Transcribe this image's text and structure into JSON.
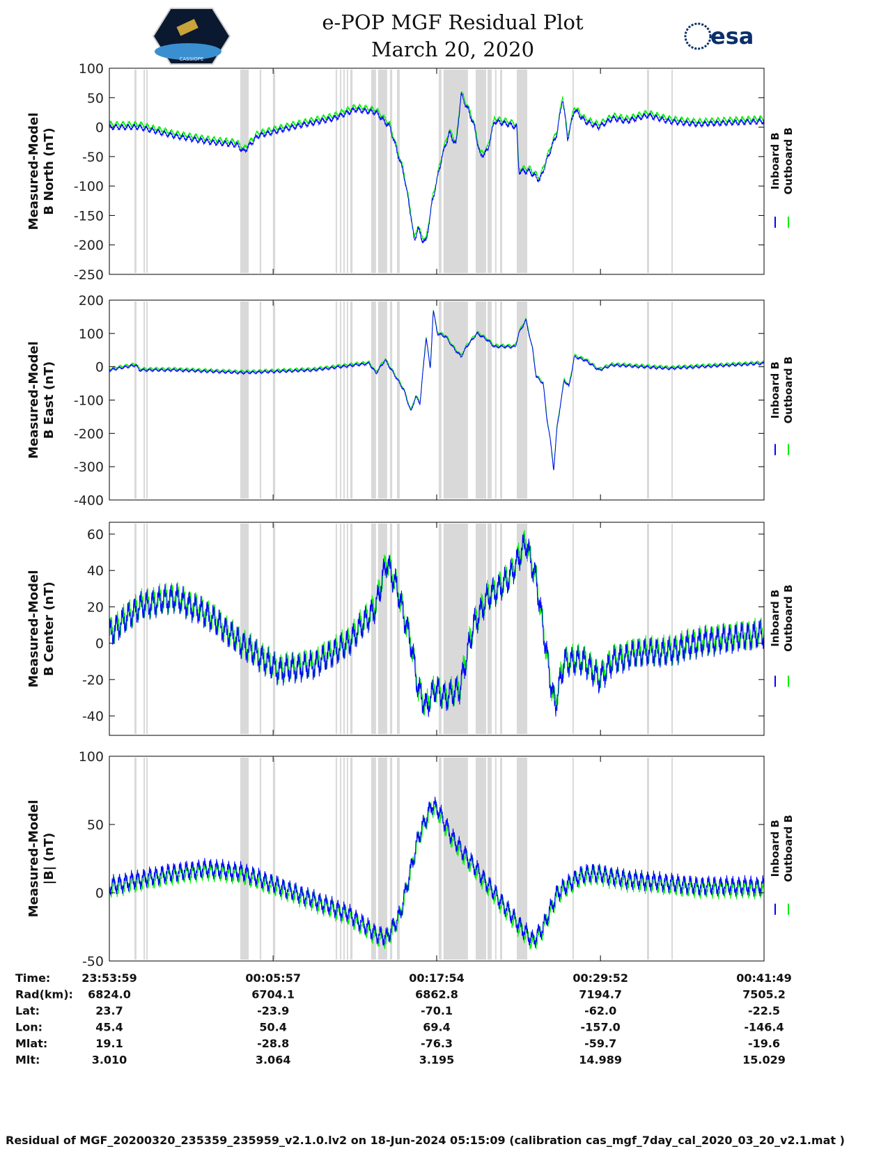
{
  "header": {
    "title_line1": "e-POP MGF Residual Plot",
    "title_line2": "March 20, 2020",
    "left_logo_text": "CASSIOPE",
    "right_logo_text": "esa"
  },
  "colors": {
    "inboard": "#0000ff",
    "outboard": "#00ee00",
    "shade": "#d9d9d9"
  },
  "chart_data": {
    "type": "line",
    "x_unit": "seconds since 23:53:59",
    "xlim": [
      0,
      2870
    ],
    "x_ticks": [
      0,
      718,
      1435,
      2153,
      2870
    ],
    "legend": {
      "placement": "right",
      "entries": [
        "Inboard B",
        "Outboard B"
      ]
    },
    "shaded_intervals": [
      [
        110,
        119
      ],
      [
        150,
        156
      ],
      [
        162,
        168
      ],
      [
        574,
        611
      ],
      [
        659,
        666
      ],
      [
        717,
        727
      ],
      [
        992,
        998
      ],
      [
        1011,
        1017
      ],
      [
        1026,
        1032
      ],
      [
        1041,
        1047
      ],
      [
        1056,
        1066
      ],
      [
        1148,
        1169
      ],
      [
        1178,
        1218
      ],
      [
        1230,
        1240
      ],
      [
        1261,
        1273
      ],
      [
        1444,
        1456
      ],
      [
        1465,
        1572
      ],
      [
        1606,
        1652
      ],
      [
        1658,
        1676
      ],
      [
        1691,
        1697
      ],
      [
        1713,
        1722
      ],
      [
        1786,
        1832
      ],
      [
        2030,
        2036
      ],
      [
        2357,
        2366
      ],
      [
        2464,
        2470
      ]
    ],
    "panels": [
      {
        "ylabel1": "Measured-Model",
        "ylabel2": "B North (nT)",
        "ylim": [
          -250,
          100
        ],
        "yticks": [
          100,
          50,
          0,
          -50,
          -100,
          -150,
          -200,
          -250
        ],
        "noise": 6,
        "outboard_offset": 5,
        "inboard": [
          [
            0,
            0
          ],
          [
            131,
            0
          ],
          [
            284,
            -15
          ],
          [
            437,
            -25
          ],
          [
            559,
            -30
          ],
          [
            589,
            -42
          ],
          [
            650,
            -15
          ],
          [
            803,
            0
          ],
          [
            986,
            15
          ],
          [
            1078,
            30
          ],
          [
            1169,
            25
          ],
          [
            1230,
            0
          ],
          [
            1291,
            -80
          ],
          [
            1322,
            -150
          ],
          [
            1337,
            -195
          ],
          [
            1353,
            -170
          ],
          [
            1368,
            -190
          ],
          [
            1389,
            -195
          ],
          [
            1414,
            -130
          ],
          [
            1459,
            -50
          ],
          [
            1490,
            -10
          ],
          [
            1520,
            -30
          ],
          [
            1542,
            55
          ],
          [
            1572,
            30
          ],
          [
            1597,
            5
          ],
          [
            1627,
            -50
          ],
          [
            1658,
            -40
          ],
          [
            1688,
            10
          ],
          [
            1749,
            5
          ],
          [
            1786,
            0
          ],
          [
            1795,
            -75
          ],
          [
            1841,
            -75
          ],
          [
            1887,
            -90
          ],
          [
            1933,
            -40
          ],
          [
            1963,
            -10
          ],
          [
            1987,
            50
          ],
          [
            2009,
            -20
          ],
          [
            2039,
            30
          ],
          [
            2085,
            10
          ],
          [
            2146,
            0
          ],
          [
            2207,
            15
          ],
          [
            2268,
            10
          ],
          [
            2360,
            20
          ],
          [
            2452,
            10
          ],
          [
            2574,
            5
          ],
          [
            2870,
            10
          ]
        ]
      },
      {
        "ylabel1": "Measured-Model",
        "ylabel2": "B East (nT)",
        "ylim": [
          -400,
          200
        ],
        "yticks": [
          200,
          100,
          0,
          -100,
          -200,
          -300,
          -400
        ],
        "noise": 5,
        "outboard_offset": 4,
        "inboard": [
          [
            0,
            -10
          ],
          [
            116,
            5
          ],
          [
            131,
            -10
          ],
          [
            284,
            -10
          ],
          [
            589,
            -18
          ],
          [
            895,
            -10
          ],
          [
            1139,
            10
          ],
          [
            1169,
            -20
          ],
          [
            1209,
            20
          ],
          [
            1246,
            -20
          ],
          [
            1291,
            -70
          ],
          [
            1322,
            -135
          ],
          [
            1343,
            -90
          ],
          [
            1362,
            -110
          ],
          [
            1389,
            90
          ],
          [
            1407,
            -10
          ],
          [
            1420,
            170
          ],
          [
            1438,
            100
          ],
          [
            1475,
            90
          ],
          [
            1505,
            60
          ],
          [
            1542,
            30
          ],
          [
            1566,
            60
          ],
          [
            1612,
            100
          ],
          [
            1658,
            80
          ],
          [
            1688,
            60
          ],
          [
            1780,
            60
          ],
          [
            1795,
            100
          ],
          [
            1826,
            140
          ],
          [
            1856,
            50
          ],
          [
            1871,
            -30
          ],
          [
            1902,
            -50
          ],
          [
            1917,
            -150
          ],
          [
            1933,
            -220
          ],
          [
            1948,
            -310
          ],
          [
            1963,
            -180
          ],
          [
            1994,
            -40
          ],
          [
            2015,
            -60
          ],
          [
            2039,
            30
          ],
          [
            2085,
            20
          ],
          [
            2146,
            -10
          ],
          [
            2207,
            5
          ],
          [
            2329,
            0
          ],
          [
            2452,
            -5
          ],
          [
            2870,
            10
          ]
        ]
      },
      {
        "ylabel1": "Measured-Model",
        "ylabel2": "B Center (nT)",
        "ylim": [
          -50.7,
          66.5
        ],
        "yticks": [
          60,
          40,
          20,
          0,
          -20,
          -40
        ],
        "noise": 9,
        "outboard_offset": 1,
        "inboard": [
          [
            0,
            5
          ],
          [
            131,
            20
          ],
          [
            284,
            25
          ],
          [
            437,
            15
          ],
          [
            574,
            0
          ],
          [
            742,
            -15
          ],
          [
            895,
            -12
          ],
          [
            1047,
            0
          ],
          [
            1169,
            20
          ],
          [
            1215,
            45
          ],
          [
            1261,
            30
          ],
          [
            1322,
            0
          ],
          [
            1353,
            -25
          ],
          [
            1389,
            -35
          ],
          [
            1429,
            -25
          ],
          [
            1475,
            -30
          ],
          [
            1536,
            -25
          ],
          [
            1597,
            10
          ],
          [
            1658,
            25
          ],
          [
            1749,
            35
          ],
          [
            1826,
            55
          ],
          [
            1871,
            35
          ],
          [
            1933,
            -20
          ],
          [
            1954,
            -35
          ],
          [
            1994,
            -10
          ],
          [
            2085,
            -10
          ],
          [
            2146,
            -20
          ],
          [
            2207,
            -10
          ],
          [
            2329,
            -5
          ],
          [
            2452,
            -5
          ],
          [
            2574,
            0
          ],
          [
            2870,
            5
          ]
        ]
      },
      {
        "ylabel1": "Measured-Model",
        "ylabel2": "|B| (nT)",
        "ylim": [
          -50,
          100
        ],
        "yticks": [
          100,
          50,
          0,
          -50
        ],
        "noise": 8,
        "outboard_offset": -2,
        "inboard": [
          [
            0,
            5
          ],
          [
            131,
            10
          ],
          [
            284,
            15
          ],
          [
            437,
            18
          ],
          [
            589,
            15
          ],
          [
            742,
            5
          ],
          [
            895,
            -5
          ],
          [
            1047,
            -15
          ],
          [
            1169,
            -30
          ],
          [
            1215,
            -33
          ],
          [
            1276,
            -15
          ],
          [
            1353,
            40
          ],
          [
            1414,
            65
          ],
          [
            1444,
            60
          ],
          [
            1505,
            40
          ],
          [
            1597,
            20
          ],
          [
            1688,
            0
          ],
          [
            1780,
            -20
          ],
          [
            1856,
            -35
          ],
          [
            1902,
            -25
          ],
          [
            1963,
            0
          ],
          [
            2055,
            12
          ],
          [
            2116,
            15
          ],
          [
            2268,
            10
          ],
          [
            2421,
            8
          ],
          [
            2574,
            5
          ],
          [
            2870,
            5
          ]
        ]
      }
    ]
  },
  "table": {
    "rows": [
      {
        "label": "Time:",
        "values": [
          "23:53:59",
          "00:05:57",
          "00:17:54",
          "00:29:52",
          "00:41:49"
        ]
      },
      {
        "label": "Rad(km):",
        "values": [
          "6824.0",
          "6704.1",
          "6862.8",
          "7194.7",
          "7505.2"
        ]
      },
      {
        "label": "Lat:",
        "values": [
          "23.7",
          "-23.9",
          "-70.1",
          "-62.0",
          "-22.5"
        ]
      },
      {
        "label": "Lon:",
        "values": [
          "45.4",
          "50.4",
          "69.4",
          "-157.0",
          "-146.4"
        ]
      },
      {
        "label": "Mlat:",
        "values": [
          "19.1",
          "-28.8",
          "-76.3",
          "-59.7",
          "-19.6"
        ]
      },
      {
        "label": "Mlt:",
        "values": [
          "3.010",
          "3.064",
          "3.195",
          "14.989",
          "15.029"
        ]
      }
    ]
  },
  "footer": "Residual of MGF_20200320_235359_235959_v2.1.0.lv2 on 18-Jun-2024 05:15:09 (calibration cas_mgf_7day_cal_2020_03_20_v2.1.mat )"
}
